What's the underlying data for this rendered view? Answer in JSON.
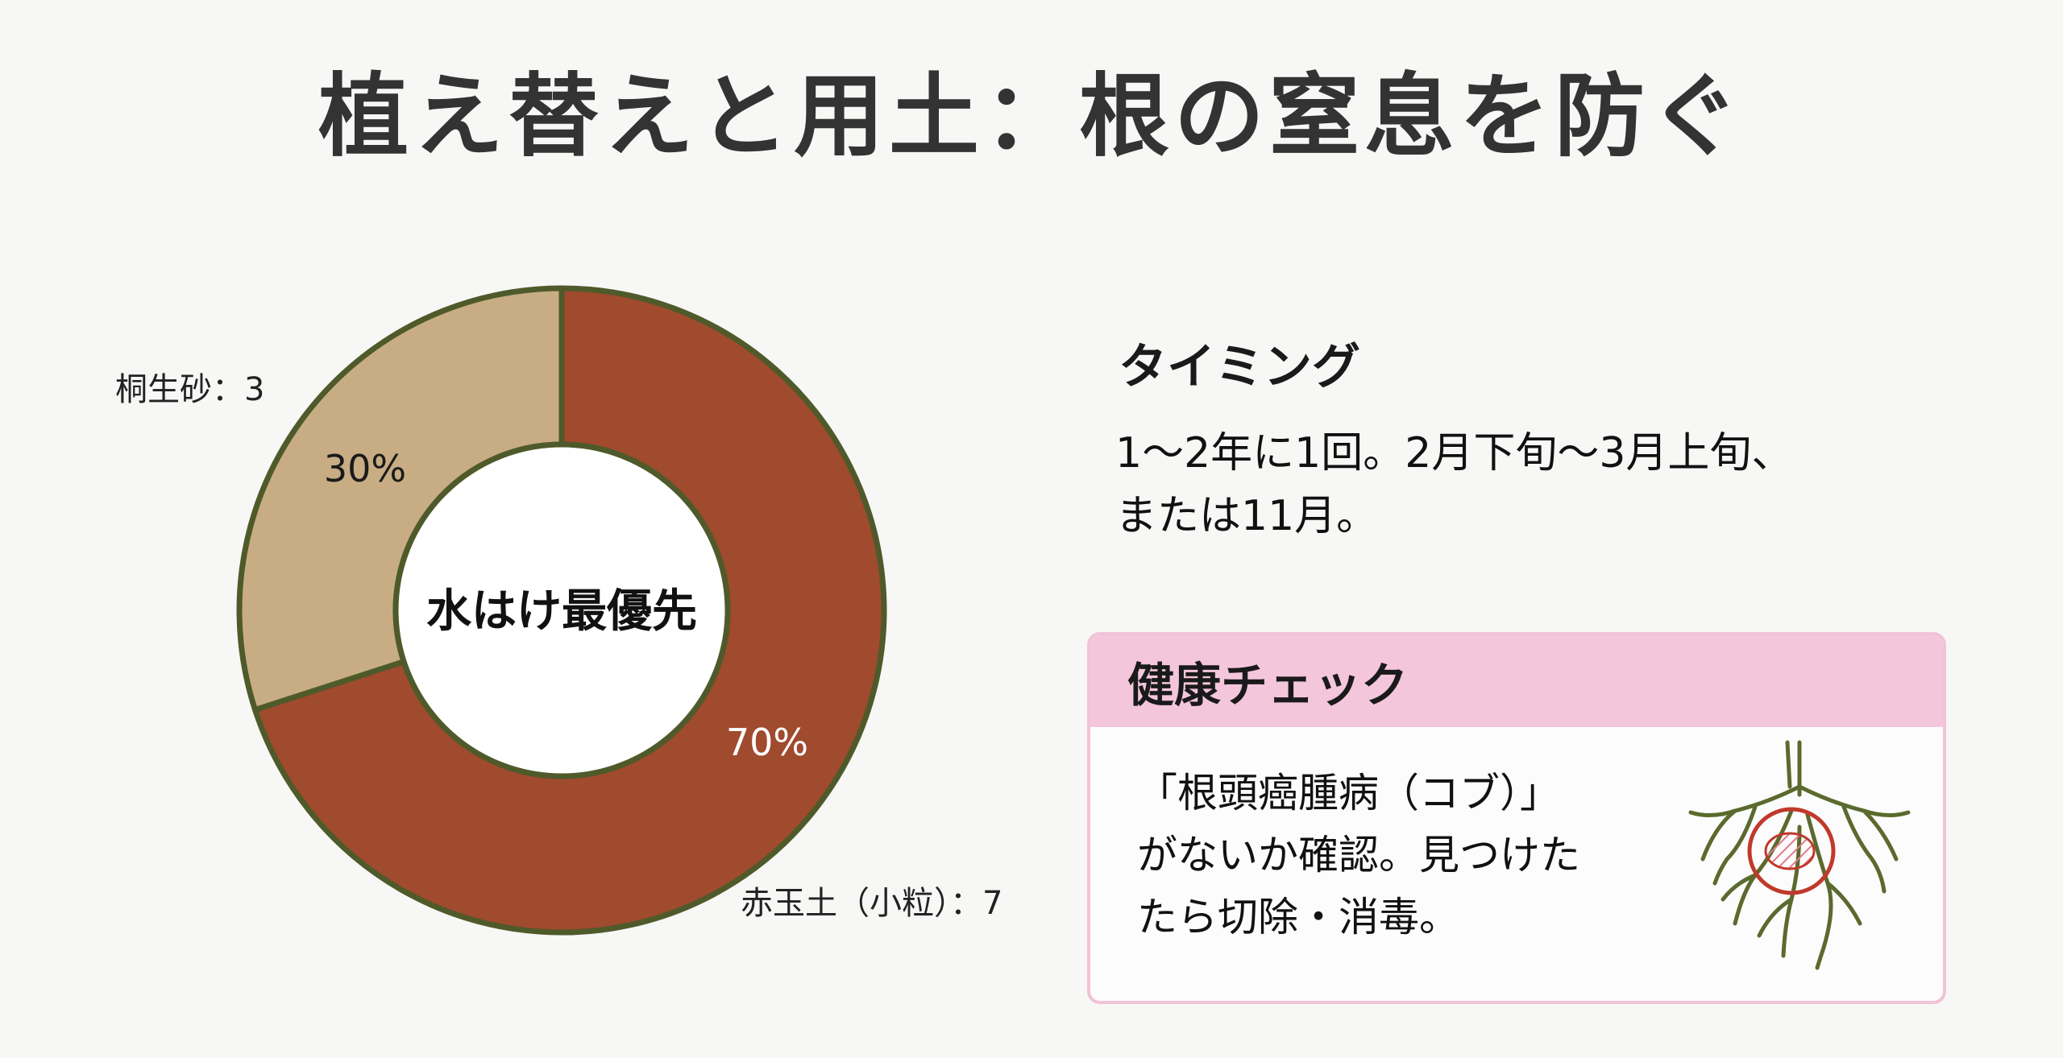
{
  "title": "植え替えと用土：根の窒息を防ぐ",
  "chart_data": {
    "type": "pie",
    "donut": true,
    "center_label": "水はけ最優先",
    "slices": [
      {
        "name": "赤玉土（小粒）",
        "label": "赤玉土（小粒）：7",
        "value": 70,
        "pct_label": "70%",
        "color": "#a04a2e",
        "text_color": "#ffffff"
      },
      {
        "name": "桐生砂",
        "label": "桐生砂：3",
        "value": 30,
        "pct_label": "30%",
        "color": "#c8ad84",
        "text_color": "#1a1a1a"
      }
    ],
    "stroke_color": "#4f5a2a"
  },
  "timing": {
    "heading": "タイミング",
    "text_line1": "1～2年に1回。2月下旬～3月上旬、",
    "text_line2": "または11月。"
  },
  "health": {
    "heading": "健康チェック",
    "text": "「根頭癌腫病（コブ）」\nがないか確認。見つけた\nたら切除・消毒。",
    "icon": "root-gall-icon"
  }
}
